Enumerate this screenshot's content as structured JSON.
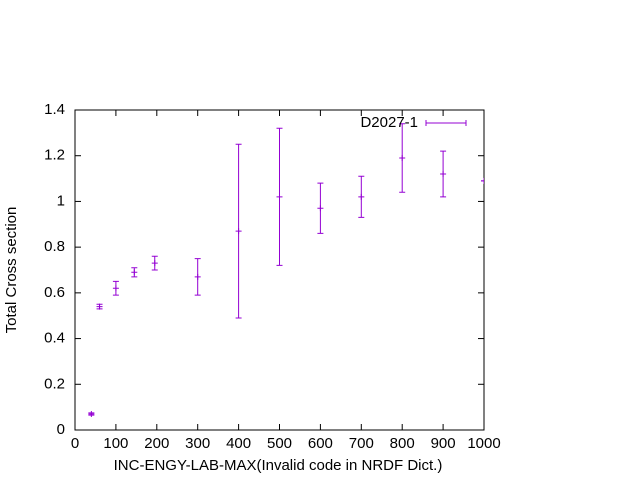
{
  "chart_data": {
    "type": "errorbar",
    "xlabel": "INC-ENGY-LAB-MAX(Invalid code in NRDF Dict.)",
    "ylabel": "Total Cross section",
    "x": [
      40,
      60,
      100,
      145,
      195,
      300,
      400,
      500,
      600,
      700,
      800,
      900,
      1000
    ],
    "series": [
      {
        "name": "D2027-1",
        "color": "#9400d3",
        "values": [
          0.07,
          0.54,
          0.62,
          0.69,
          0.73,
          0.67,
          0.87,
          1.02,
          0.97,
          1.02,
          1.19,
          1.12,
          1.09
        ],
        "errors": [
          0.005,
          0.01,
          0.03,
          0.02,
          0.03,
          0.08,
          0.38,
          0.3,
          0.11,
          0.09,
          0.15,
          0.1,
          0
        ]
      }
    ],
    "xlim": [
      0,
      1000
    ],
    "xticks": [
      0,
      100,
      200,
      300,
      400,
      500,
      600,
      700,
      800,
      900,
      1000
    ],
    "ylim": [
      0,
      1.4
    ],
    "yticks": [
      0,
      0.2,
      0.4,
      0.6,
      0.8,
      1,
      1.2,
      1.4
    ],
    "legend": "top-right",
    "grid": false
  }
}
